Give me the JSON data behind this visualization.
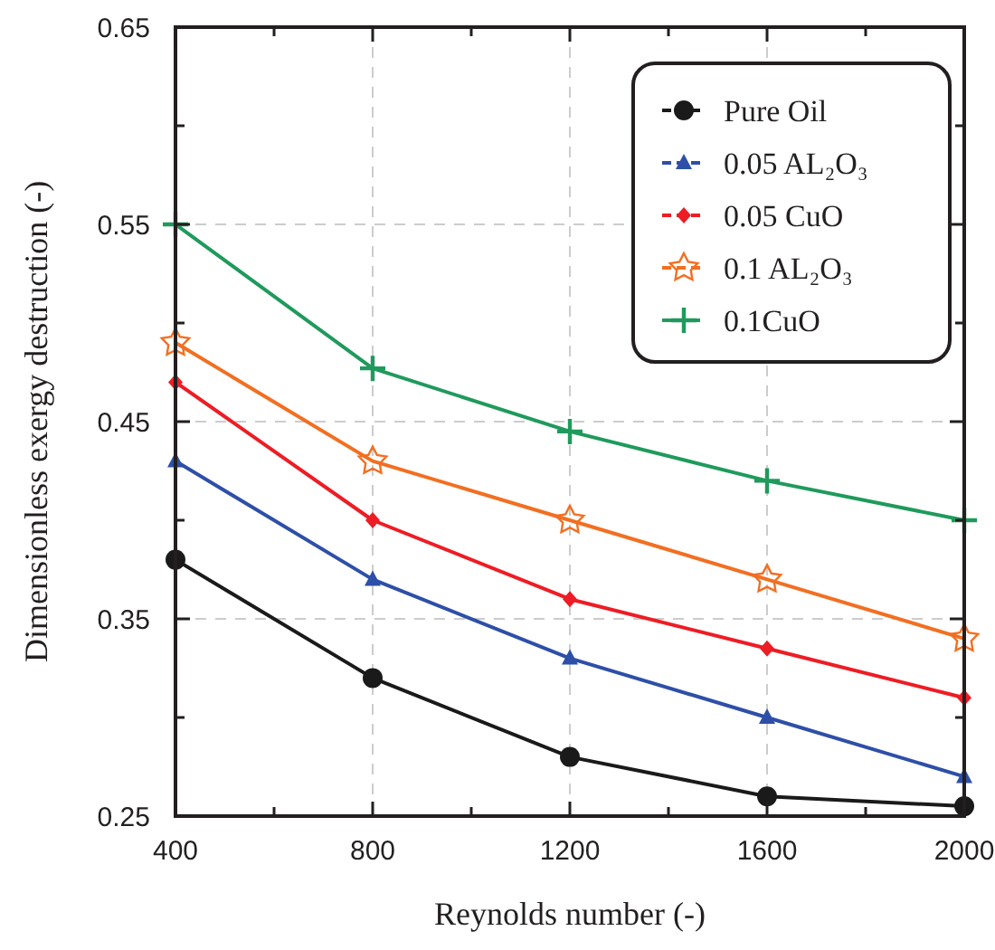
{
  "chart_data": {
    "type": "line",
    "xlabel": "Reynolds number (-)",
    "ylabel": "Dimensionless exergy destruction (-)",
    "x": [
      400,
      800,
      1200,
      1600,
      2000
    ],
    "xlim": [
      400,
      2000
    ],
    "xticks": [
      400,
      {
        "value": 600,
        "label": null
      },
      800,
      {
        "value": 1000,
        "label": null
      },
      1200,
      {
        "value": 1400,
        "label": null
      },
      1600,
      {
        "value": 1800,
        "label": null
      },
      2000
    ],
    "ylim": [
      0.25,
      0.65
    ],
    "yticks": [
      0.25,
      {
        "value": 0.3,
        "label": null
      },
      0.35,
      {
        "value": 0.4,
        "label": null
      },
      0.45,
      {
        "value": 0.5,
        "label": null
      },
      0.55,
      {
        "value": 0.6,
        "label": null
      },
      0.65
    ],
    "grid": true,
    "legend": "top right",
    "line_style": "solid",
    "series": [
      {
        "name": "Pure Oil",
        "color": "#1a1a1a",
        "marker": "circle",
        "values": [
          0.38,
          0.32,
          0.28,
          0.26,
          0.255
        ]
      },
      {
        "name": "0.05 AL₂O₃",
        "color": "#2e4fa8",
        "marker": "triangle",
        "values": [
          0.43,
          0.37,
          0.33,
          0.3,
          0.27
        ]
      },
      {
        "name": "0.05 CuO",
        "color": "#ee1c24",
        "marker": "diamond",
        "values": [
          0.47,
          0.4,
          0.36,
          0.335,
          0.31
        ]
      },
      {
        "name": "0.1 AL₂O₃",
        "color": "#f26f21",
        "marker": "star",
        "values": [
          0.49,
          0.43,
          0.4,
          0.37,
          0.34
        ]
      },
      {
        "name": "0.1CuO",
        "color": "#1f9a5c",
        "marker": "cross",
        "values": [
          0.55,
          0.477,
          0.445,
          0.42,
          0.4
        ]
      }
    ]
  }
}
